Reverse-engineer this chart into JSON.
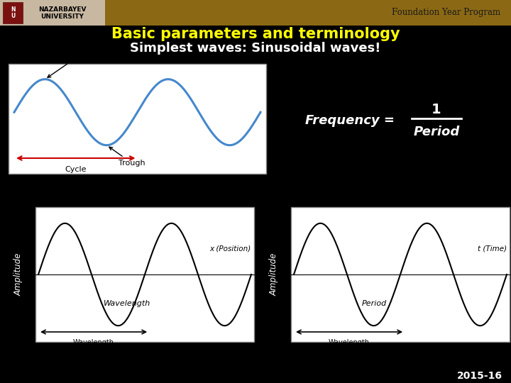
{
  "bg_color": "#000000",
  "header_color": "#8B6914",
  "title_line1": "Basic parameters and terminology",
  "title_line2": "Simplest waves: Sinusoidal waves!",
  "title_color1": "#FFFF00",
  "title_color2": "#FFFFFF",
  "header_text": "Foundation Year Program",
  "header_text_color": "#1a1a1a",
  "footer_text": "2015-16",
  "footer_color": "#FFFFFF",
  "logo_bg": "#C8B8A2",
  "logo_text": "NAZARBAYEV\nUNIVERSITY",
  "wave_blue": "#4488CC",
  "wave_black": "#000000",
  "white": "#FFFFFF",
  "red": "#CC0000",
  "gray_border": "#888888"
}
